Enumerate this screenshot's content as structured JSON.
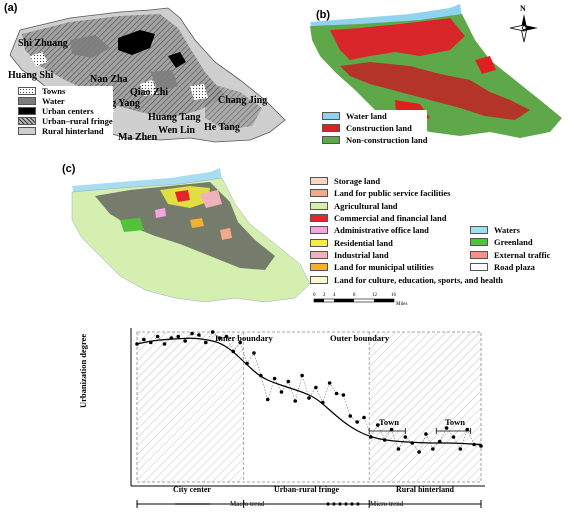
{
  "panel_a": {
    "label": "(a)",
    "places": [
      "Shi Zhuang",
      "Huang Shi",
      "Nan Zha",
      "Qiao Zhi",
      "Qing Yang",
      "Chang Jing",
      "Huang Tang",
      "Wen Lin",
      "He Tang",
      "Ma Zhen"
    ],
    "legend": [
      {
        "label": "Towns",
        "color": "#ffffff",
        "pattern": "dots"
      },
      {
        "label": "Water",
        "color": "#7d7d7d",
        "pattern": "solid"
      },
      {
        "label": "Urban centers",
        "color": "#000000",
        "pattern": "solid"
      },
      {
        "label": "Urban–rural fringe",
        "color": "#9a9a9a",
        "pattern": "hatch"
      },
      {
        "label": "Rural hinterland",
        "color": "#cfcfcf",
        "pattern": "solid"
      }
    ]
  },
  "panel_b": {
    "label": "(b)",
    "north": "N",
    "legend": [
      {
        "label": "Water land",
        "color": "#8fd3ee"
      },
      {
        "label": "Construction land",
        "color": "#e02020"
      },
      {
        "label": "Non-construction land",
        "color": "#5fa84a"
      }
    ]
  },
  "panel_c": {
    "label": "(c)",
    "legend_left": [
      {
        "label": "Storage land",
        "color": "#f6d7c6"
      },
      {
        "label": "Land for public service facilities",
        "color": "#f3a98a"
      },
      {
        "label": "Agricultural land",
        "color": "#d5efb0"
      },
      {
        "label": "Commercial and financial land",
        "color": "#e2262a"
      },
      {
        "label": "Administrative office land",
        "color": "#f3a6e0"
      },
      {
        "label": "Residential land",
        "color": "#f5f03a"
      },
      {
        "label": "Industrial land",
        "color": "#efb2b8"
      },
      {
        "label": "Land for municipal utilities",
        "color": "#f0b030"
      },
      {
        "label": "Land for culture, education, sports, and health",
        "color": "#fdf8cf"
      }
    ],
    "legend_right": [
      {
        "label": "Waters",
        "color": "#a8dcef"
      },
      {
        "label": "Greenland",
        "color": "#4fc43a"
      },
      {
        "label": "External traffic",
        "color": "#f2908a"
      },
      {
        "label": "Road plaza",
        "color": "#ffffff"
      }
    ],
    "scale_ticks": [
      "0",
      "2",
      "4",
      "8",
      "12",
      "16"
    ],
    "scale_unit": "Miles"
  },
  "panel_d": {
    "ylabel": "Urbanization degree",
    "inner_boundary": "Inner boundary",
    "outer_boundary": "Outer boundary",
    "town_label": "Town",
    "regions": [
      "City center",
      "Urban-rural fringe",
      "Rural hinterland"
    ],
    "legend_macro": "Macro trend",
    "legend_micro": "Micro trend",
    "macro_trend": {
      "x": [
        0,
        4,
        8,
        12,
        16,
        20,
        24,
        28,
        32,
        36,
        40,
        44,
        48,
        52,
        56,
        60,
        64,
        68,
        72,
        76,
        80,
        84,
        88,
        92,
        96,
        100
      ],
      "y": [
        0.92,
        0.94,
        0.95,
        0.955,
        0.96,
        0.95,
        0.93,
        0.87,
        0.78,
        0.7,
        0.66,
        0.63,
        0.6,
        0.56,
        0.48,
        0.4,
        0.34,
        0.3,
        0.28,
        0.27,
        0.265,
        0.26,
        0.26,
        0.26,
        0.255,
        0.25
      ]
    },
    "micro_trend": {
      "x": [
        0,
        2,
        4,
        6,
        8,
        10,
        12,
        14,
        16,
        18,
        20,
        22,
        24,
        26,
        28,
        30,
        32,
        34,
        36,
        38,
        40,
        42,
        44,
        46,
        48,
        50,
        52,
        54,
        56,
        58,
        60,
        62,
        64,
        66,
        68,
        70,
        72,
        74,
        76,
        78,
        80,
        82,
        84,
        86,
        88,
        90,
        92,
        94,
        96,
        98,
        100
      ],
      "y": [
        0.92,
        0.95,
        0.93,
        0.97,
        0.92,
        0.96,
        0.97,
        0.94,
        0.99,
        0.98,
        0.93,
        1.0,
        0.96,
        0.97,
        0.87,
        0.93,
        0.79,
        0.86,
        0.71,
        0.55,
        0.69,
        0.6,
        0.67,
        0.54,
        0.71,
        0.56,
        0.63,
        0.53,
        0.66,
        0.59,
        0.58,
        0.44,
        0.4,
        0.43,
        0.3,
        0.38,
        0.28,
        0.35,
        0.22,
        0.3,
        0.26,
        0.2,
        0.32,
        0.22,
        0.27,
        0.36,
        0.3,
        0.22,
        0.35,
        0.25,
        0.24
      ]
    }
  }
}
